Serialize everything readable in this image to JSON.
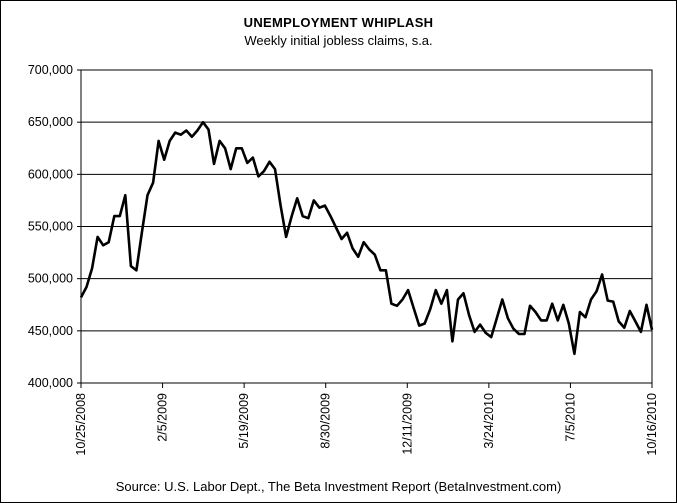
{
  "chart_data": {
    "type": "line",
    "title": "UNEMPLOYMENT WHIPLASH",
    "subtitle": "Weekly initial jobless claims, s.a.",
    "source": "Source: U.S. Labor Dept., The Beta Investment Report (BetaInvestment.com)",
    "xlabel": "",
    "ylabel": "",
    "ylim": [
      400000,
      700000
    ],
    "xlim": [
      "10/25/2008",
      "10/16/2010"
    ],
    "yticks": [
      400000,
      450000,
      500000,
      550000,
      600000,
      650000,
      700000
    ],
    "ytick_labels": [
      "400,000",
      "450,000",
      "500,000",
      "550,000",
      "600,000",
      "650,000",
      "700,000"
    ],
    "xticks": [
      "10/25/2008",
      "2/5/2009",
      "5/19/2009",
      "8/30/2009",
      "12/11/2009",
      "3/24/2010",
      "7/5/2010",
      "10/16/2010"
    ],
    "grid": "horizontal",
    "line_color": "#000000",
    "series": [
      {
        "values": [
          482000,
          492000,
          510000,
          540000,
          532000,
          535000,
          560000,
          560000,
          580000,
          512000,
          508000,
          545000,
          580000,
          592000,
          632000,
          614000,
          632000,
          640000,
          638000,
          642000,
          636000,
          642000,
          650000,
          643000,
          610000,
          632000,
          625000,
          605000,
          625000,
          625000,
          611000,
          616000,
          598000,
          603000,
          612000,
          605000,
          570000,
          540000,
          560000,
          577000,
          560000,
          558000,
          575000,
          568000,
          570000,
          560000,
          549000,
          538000,
          544000,
          529000,
          521000,
          535000,
          528000,
          523000,
          508000,
          508000,
          476000,
          474000,
          480000,
          489000,
          472000,
          455000,
          457000,
          471000,
          489000,
          476000,
          489000,
          440000,
          480000,
          486000,
          465000,
          449000,
          456000,
          448000,
          444000,
          462000,
          480000,
          462000,
          452000,
          447000,
          447000,
          474000,
          468000,
          460000,
          460000,
          476000,
          460000,
          475000,
          457000,
          428000,
          468000,
          463000,
          480000,
          488000,
          504000,
          479000,
          478000,
          459000,
          453000,
          469000,
          459000,
          449000,
          475000,
          451000
        ]
      }
    ]
  }
}
